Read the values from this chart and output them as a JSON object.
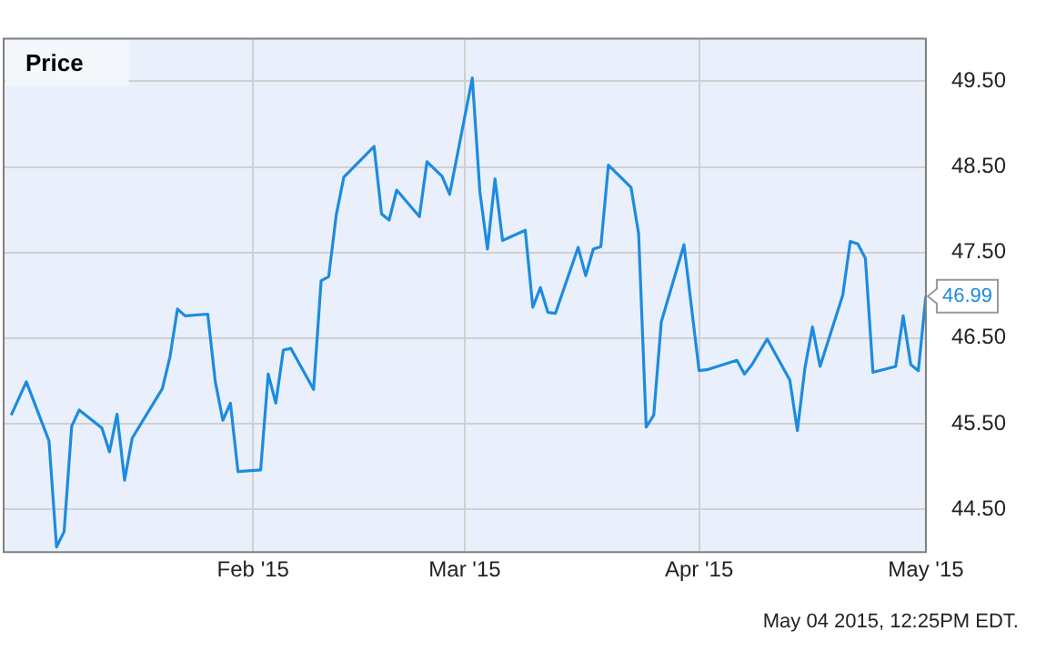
{
  "chart_data": {
    "type": "line",
    "title": "Price",
    "x": [
      "2014-12-31",
      "2015-01-02",
      "2015-01-05",
      "2015-01-06",
      "2015-01-07",
      "2015-01-08",
      "2015-01-09",
      "2015-01-12",
      "2015-01-13",
      "2015-01-14",
      "2015-01-15",
      "2015-01-16",
      "2015-01-20",
      "2015-01-21",
      "2015-01-22",
      "2015-01-23",
      "2015-01-26",
      "2015-01-27",
      "2015-01-28",
      "2015-01-29",
      "2015-01-30",
      "2015-02-02",
      "2015-02-03",
      "2015-02-04",
      "2015-02-05",
      "2015-02-06",
      "2015-02-09",
      "2015-02-10",
      "2015-02-11",
      "2015-02-12",
      "2015-02-13",
      "2015-02-17",
      "2015-02-18",
      "2015-02-19",
      "2015-02-20",
      "2015-02-23",
      "2015-02-24",
      "2015-02-26",
      "2015-02-27",
      "2015-03-02",
      "2015-03-03",
      "2015-03-04",
      "2015-03-05",
      "2015-03-06",
      "2015-03-09",
      "2015-03-10",
      "2015-03-11",
      "2015-03-12",
      "2015-03-13",
      "2015-03-16",
      "2015-03-17",
      "2015-03-18",
      "2015-03-19",
      "2015-03-20",
      "2015-03-23",
      "2015-03-24",
      "2015-03-25",
      "2015-03-26",
      "2015-03-27",
      "2015-03-30",
      "2015-04-01",
      "2015-04-02",
      "2015-04-06",
      "2015-04-07",
      "2015-04-08",
      "2015-04-10",
      "2015-04-13",
      "2015-04-14",
      "2015-04-15",
      "2015-04-16",
      "2015-04-17",
      "2015-04-20",
      "2015-04-21",
      "2015-04-22",
      "2015-04-23",
      "2015-04-24",
      "2015-04-27",
      "2015-04-28",
      "2015-04-29",
      "2015-04-30",
      "2015-05-01"
    ],
    "series": [
      {
        "color": "#1c8be0",
        "values": [
          45.6,
          45.99,
          45.3,
          44.06,
          44.24,
          45.47,
          45.66,
          45.45,
          45.17,
          45.61,
          44.84,
          45.33,
          45.91,
          46.28,
          46.84,
          46.76,
          46.78,
          45.99,
          45.54,
          45.74,
          44.94,
          44.96,
          46.08,
          45.74,
          46.36,
          46.38,
          45.9,
          47.17,
          47.22,
          47.94,
          48.38,
          48.74,
          47.95,
          47.88,
          48.23,
          47.92,
          48.56,
          48.39,
          48.18,
          49.54,
          48.21,
          47.54,
          48.36,
          47.64,
          47.76,
          46.86,
          47.09,
          46.8,
          46.79,
          47.56,
          47.23,
          47.54,
          47.57,
          48.52,
          48.26,
          47.72,
          45.46,
          45.6,
          46.69,
          47.59,
          46.12,
          46.13,
          46.24,
          46.08,
          46.19,
          46.49,
          46.01,
          45.42,
          46.15,
          46.63,
          46.17,
          47.0,
          47.63,
          47.6,
          47.43,
          46.1,
          46.17,
          46.76,
          46.19,
          46.12,
          46.99
        ]
      }
    ],
    "xlim": [
      "2014-12-30",
      "2015-05-01"
    ],
    "xticks": [
      {
        "value": "2015-02-01",
        "label": "Feb '15"
      },
      {
        "value": "2015-03-01",
        "label": "Mar '15"
      },
      {
        "value": "2015-04-01",
        "label": "Apr '15"
      },
      {
        "value": "2015-05-01",
        "label": "May '15"
      }
    ],
    "ylim": [
      44,
      50
    ],
    "yticks": [
      {
        "value": 44.5,
        "label": "44.50"
      },
      {
        "value": 45.5,
        "label": "45.50"
      },
      {
        "value": 46.5,
        "label": "46.50"
      },
      {
        "value": 47.5,
        "label": "47.50"
      },
      {
        "value": 48.5,
        "label": "48.50"
      },
      {
        "value": 49.5,
        "label": "49.50"
      }
    ],
    "grid": true,
    "legend": false,
    "marker": "none",
    "annotations": [
      {
        "text": "46.99",
        "x": "2015-05-01",
        "y": 46.99
      },
      "May 04 2015, 12:25PM EDT."
    ]
  }
}
